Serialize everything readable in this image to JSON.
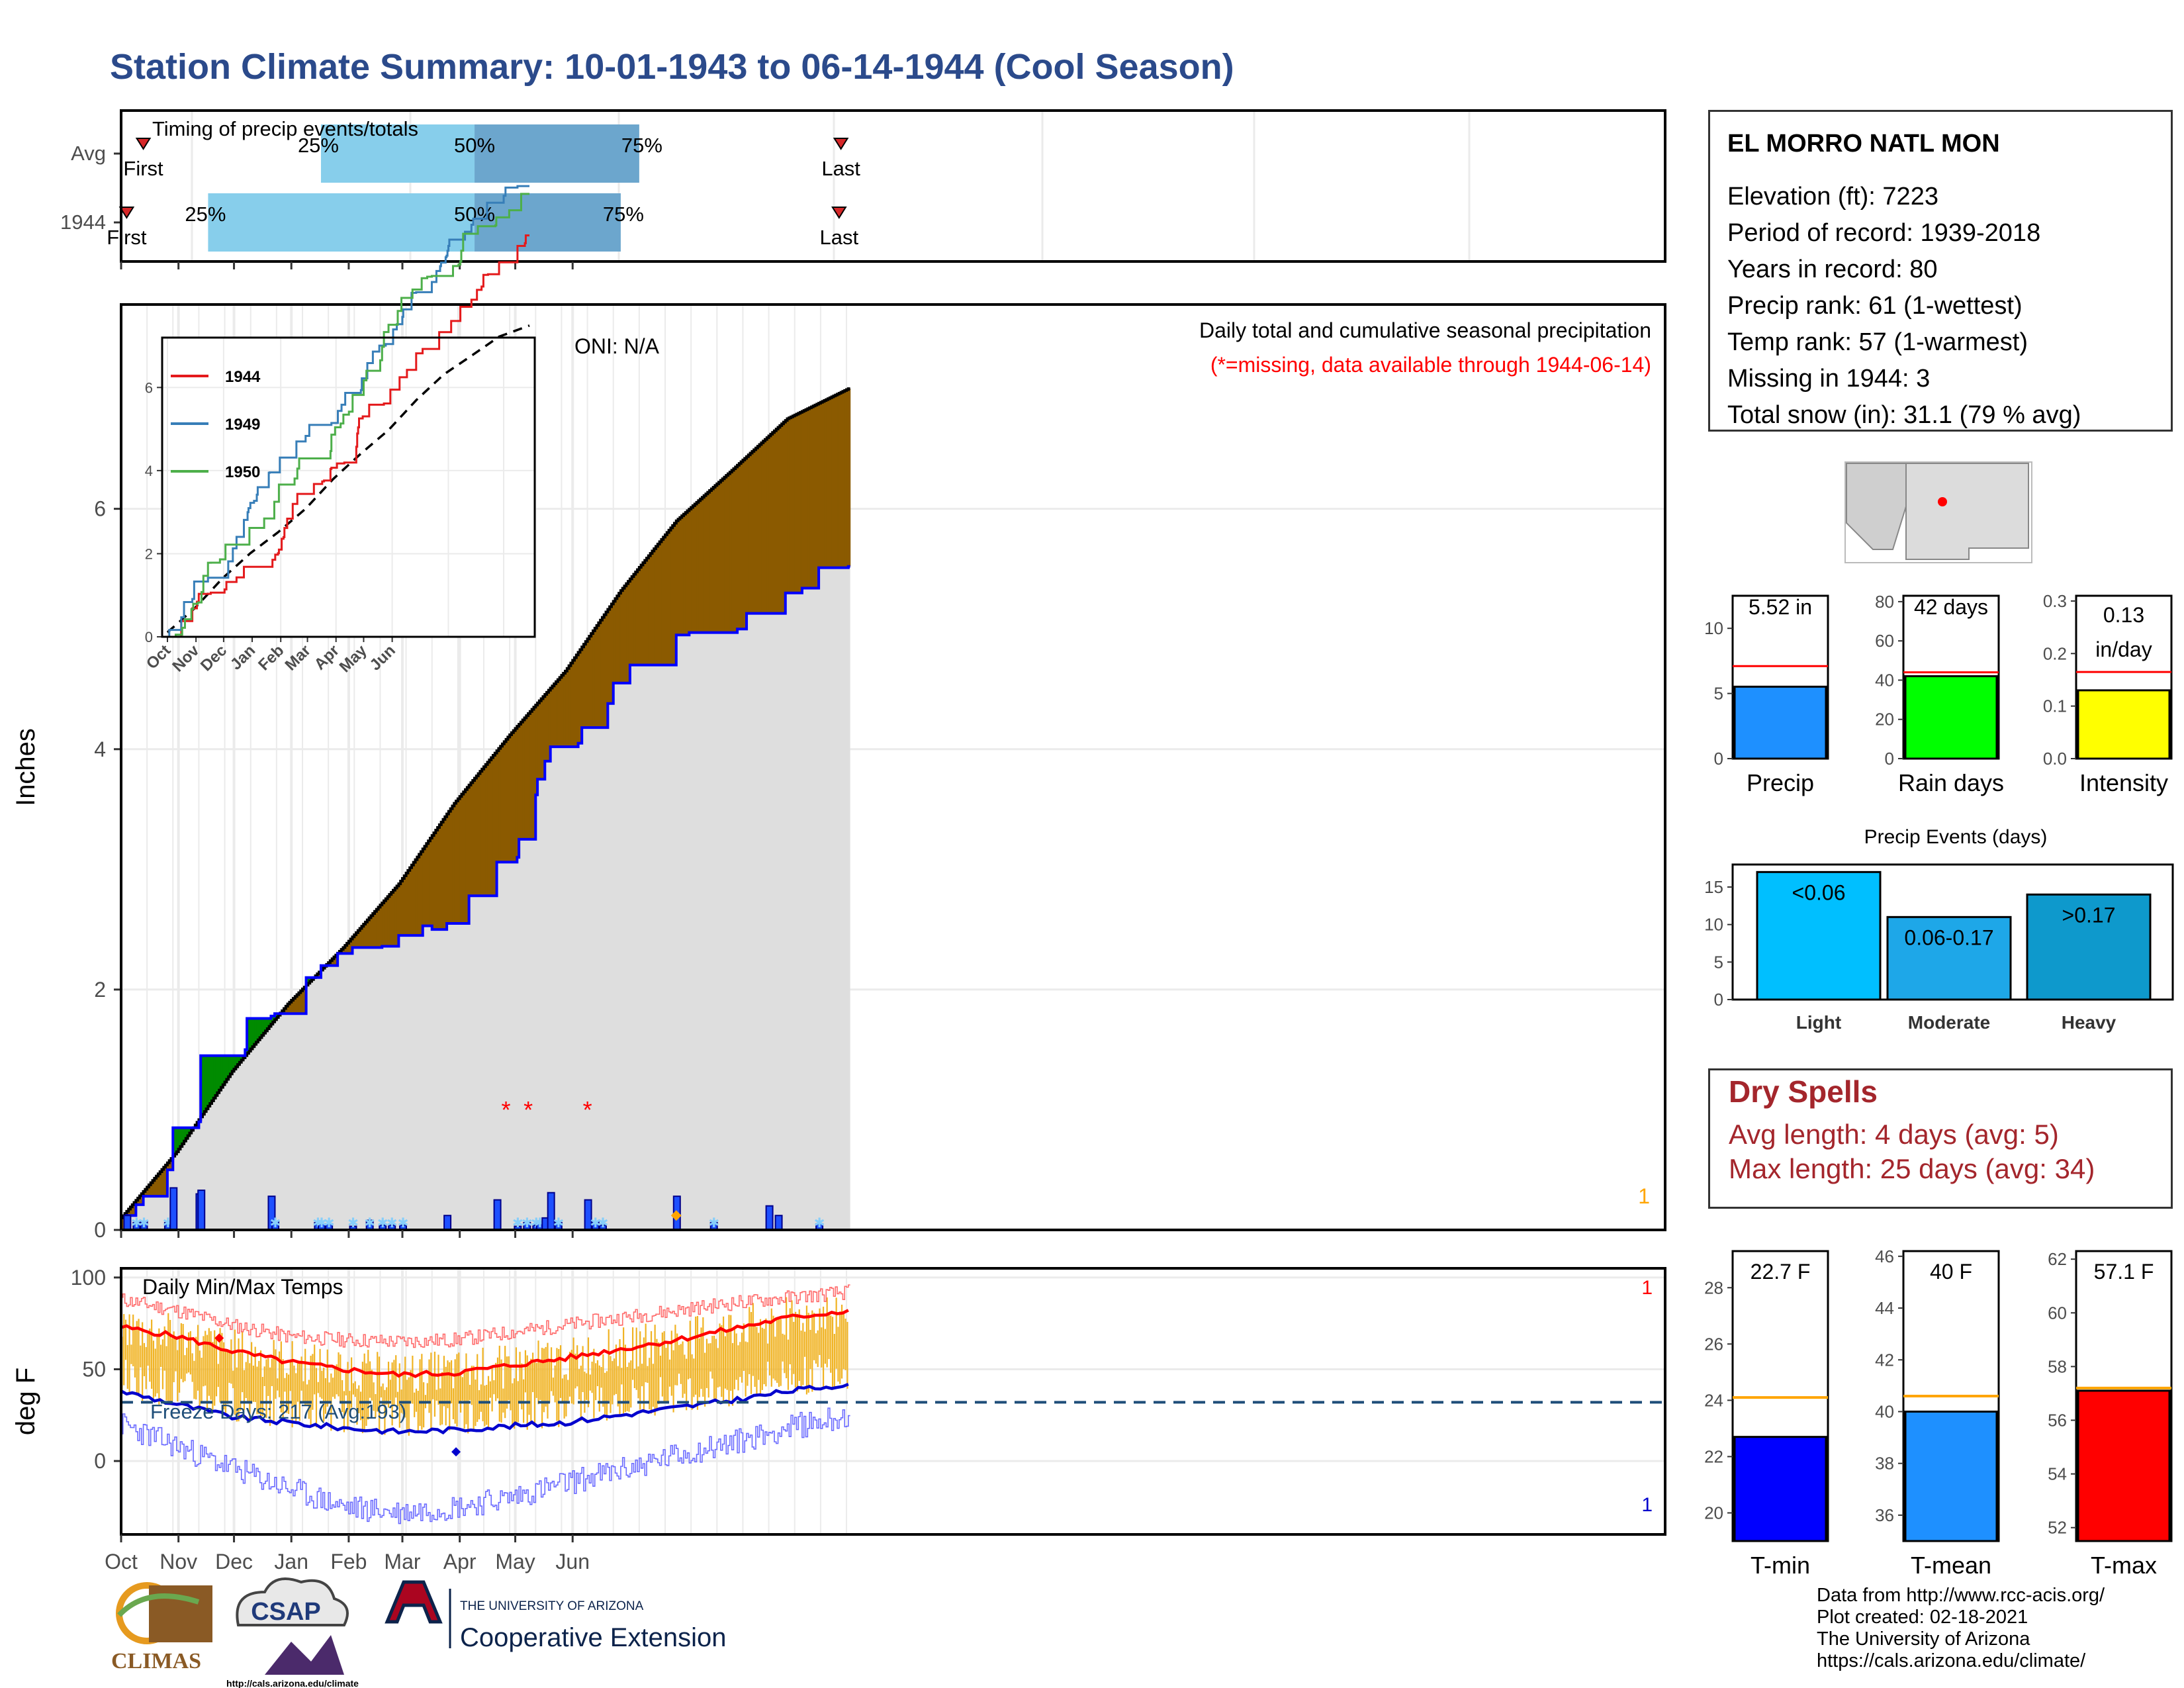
{
  "title": "Station Climate Summary: 10-01-1943 to 06-14-1944 (Cool Season)",
  "timing": {
    "heading": "Timing of precip events/totals",
    "rows": [
      {
        "label": "Avg",
        "first_day": 12,
        "p25": 108,
        "p50": 191,
        "p75": 280,
        "last_day": 389,
        "first_label": "First",
        "last_label": "Last"
      },
      {
        "label": "1944",
        "first_day": 3,
        "p25": 47,
        "p50": 191,
        "p75": 270,
        "last_day": 388,
        "first_label": "First",
        "last_label": "Last"
      }
    ],
    "pct_labels": [
      "25%",
      "50%",
      "75%"
    ]
  },
  "station": {
    "name": "EL MORRO NATL MON",
    "lines": [
      "Elevation (ft): 7223",
      "Period of record: 1939-2018",
      "Years in record: 80",
      "Precip rank: 61 (1-wettest)",
      "Temp rank: 57 (1-warmest)",
      "Missing in 1944: 3",
      "Total snow (in): 31.1 (79 % avg)"
    ]
  },
  "precip_panel": {
    "ylabel": "Inches",
    "oni": "ONI: N/A",
    "caption": "Daily total and cumulative seasonal precipitation",
    "missing_note": "(*=missing, data available through 1944-06-14)",
    "corner_count": "1",
    "yticks": [
      0,
      2,
      4,
      6
    ],
    "ylim": [
      0,
      7.7
    ]
  },
  "temp_panel": {
    "ylabel": "deg F",
    "label": "Daily Min/Max Temps",
    "freeze_note": "Freeze Days: 217 (Avg:193)",
    "yticks": [
      0,
      50,
      100
    ],
    "ylim": [
      -40,
      105
    ],
    "freeze_line": 32,
    "record_high_count": "1",
    "record_low_count": "1"
  },
  "months": [
    "Oct",
    "Nov",
    "Dec",
    "Jan",
    "Feb",
    "Mar",
    "Apr",
    "May",
    "Jun"
  ],
  "inset": {
    "series": [
      {
        "name": "1944",
        "color": "#e41a1c"
      },
      {
        "name": "1949",
        "color": "#377eb8"
      },
      {
        "name": "1950",
        "color": "#4daf4a"
      }
    ],
    "months": [
      "Oct",
      "Nov",
      "Dec",
      "Jan",
      "Feb",
      "Mar",
      "Apr",
      "May",
      "Jun"
    ],
    "yticks": [
      0,
      2,
      4,
      6
    ]
  },
  "mini_bars": [
    {
      "label": "Precip",
      "value_text": "5.52 in",
      "value": 5.52,
      "avg": 7.1,
      "ymax": 12.5,
      "ticks": [
        0,
        5,
        10
      ],
      "color": "#1e90ff"
    },
    {
      "label": "Rain days",
      "value_text": "42 days",
      "value": 42,
      "avg": 44,
      "ymax": 83,
      "ticks": [
        0,
        20,
        40,
        60,
        80
      ],
      "color": "#00ff00"
    },
    {
      "label": "Intensity",
      "value_text": "0.13 in/day",
      "value": 0.13,
      "avg": 0.165,
      "ymax": 0.31,
      "ticks": [
        0.0,
        0.1,
        0.2,
        0.3
      ],
      "color": "#ffff00"
    }
  ],
  "events": {
    "title": "Precip Events (days)",
    "bars": [
      {
        "label": "Light",
        "value_text": "<0.06",
        "value": 17
      },
      {
        "label": "Moderate",
        "value_text": "0.06-0.17",
        "value": 11
      },
      {
        "label": "Heavy",
        "value_text": ">0.17",
        "value": 14
      }
    ],
    "ticks": [
      0,
      5,
      10,
      15
    ],
    "colors": [
      "#00bfff",
      "#1ea7e8",
      "#0e99cc"
    ]
  },
  "dry_spells": {
    "title": "Dry Spells",
    "avg_line": "Avg length: 4 days (avg: 5)",
    "max_line": "Max length: 25 days (avg: 34)"
  },
  "temp_bars": [
    {
      "label": "T-min",
      "value_text": "22.7 F",
      "value": 22.7,
      "avg": 24.1,
      "ymin": 19,
      "ymax": 29.3,
      "ticks": [
        20,
        22,
        24,
        26,
        28
      ],
      "color": "#0000ff"
    },
    {
      "label": "T-mean",
      "value_text": "40 F",
      "value": 40.0,
      "avg": 40.6,
      "ymin": 35,
      "ymax": 46.2,
      "ticks": [
        36,
        38,
        40,
        42,
        44,
        46
      ],
      "color": "#1e90ff"
    },
    {
      "label": "T-max",
      "value_text": "57.1 F",
      "value": 57.1,
      "avg": 57.2,
      "ymin": 51.5,
      "ymax": 62.3,
      "ticks": [
        52,
        54,
        56,
        58,
        60,
        62
      ],
      "color": "#ff0000"
    }
  ],
  "credits": [
    "Data from http://www.rcc-acis.org/",
    "Plot created: 02-18-2021",
    "The University of Arizona",
    "https://cals.arizona.edu/climate/"
  ],
  "logos": {
    "climas": "CLIMAS",
    "csap": "CSAP",
    "csap_url": "http://cals.arizona.edu/climate",
    "ua_line1": "THE UNIVERSITY OF ARIZONA",
    "ua_line2": "Cooperative Extension"
  },
  "chart_data": [
    {
      "type": "line",
      "title": "Daily total and cumulative seasonal precipitation",
      "ylabel": "Inches",
      "x_unit": "days since Oct 1",
      "ylim": [
        0,
        7.7
      ],
      "series": [
        {
          "name": "1944 cumulative",
          "x": [
            0,
            3,
            8,
            12,
            25,
            28,
            42,
            43,
            50,
            51,
            67,
            68,
            81,
            83,
            100,
            108,
            117,
            125,
            141,
            150,
            163,
            168,
            176,
            188,
            203,
            214,
            215,
            223,
            224,
            225,
            229,
            232,
            247,
            249,
            250,
            263,
            266,
            275,
            300,
            307,
            333,
            338,
            359,
            368,
            377,
            393
          ],
          "y": [
            0,
            0.12,
            0.21,
            0.28,
            0.5,
            0.85,
            0.9,
            1.45,
            1.45,
            1.45,
            1.5,
            1.76,
            1.78,
            1.8,
            2.1,
            2.2,
            2.3,
            2.35,
            2.36,
            2.45,
            2.53,
            2.5,
            2.55,
            2.78,
            3.06,
            3.1,
            3.25,
            3.25,
            3.62,
            3.75,
            3.9,
            4.02,
            4.05,
            4.18,
            4.18,
            4.38,
            4.55,
            4.7,
            4.95,
            4.97,
            5.0,
            5.13,
            5.3,
            5.34,
            5.51,
            5.52
          ]
        },
        {
          "name": "average cumulative",
          "x": [
            0,
            30,
            60,
            90,
            120,
            150,
            180,
            210,
            240,
            270,
            300,
            330,
            360,
            393
          ],
          "y": [
            0.1,
            0.65,
            1.32,
            1.88,
            2.35,
            2.88,
            3.55,
            4.12,
            4.65,
            5.32,
            5.9,
            6.32,
            6.75,
            7.0
          ]
        }
      ],
      "missing_days": [
        208,
        220,
        252
      ],
      "daily_bars": {
        "x": [
          3,
          8,
          12,
          25,
          28,
          42,
          43,
          81,
          83,
          106,
          108,
          112,
          125,
          134,
          141,
          146,
          152,
          176,
          203,
          214,
          219,
          224,
          226,
          229,
          232,
          236,
          252,
          256,
          260,
          300,
          320,
          350,
          355,
          377
        ],
        "y": [
          0.12,
          0.06,
          0.07,
          0.06,
          0.35,
          0.3,
          0.33,
          0.28,
          0.07,
          0.06,
          0.05,
          0.05,
          0.03,
          0.08,
          0.04,
          0.04,
          0.04,
          0.12,
          0.25,
          0.03,
          0.06,
          0.04,
          0.05,
          0.1,
          0.31,
          0.06,
          0.25,
          0.07,
          0.04,
          0.28,
          0.06,
          0.2,
          0.12,
          0.05
        ]
      }
    },
    {
      "type": "bar",
      "title": "Daily Min/Max Temps",
      "ylabel": "deg F",
      "ylim": [
        -40,
        105
      ],
      "series": [
        {
          "name": "avg high",
          "x": [
            0,
            30,
            60,
            90,
            120,
            150,
            180,
            210,
            240,
            270,
            300,
            330,
            360,
            393
          ],
          "y": [
            73,
            68,
            60,
            54,
            50,
            47,
            48,
            52,
            56,
            61,
            66,
            72,
            78,
            82
          ]
        },
        {
          "name": "avg low",
          "x": [
            0,
            30,
            60,
            90,
            120,
            150,
            180,
            210,
            240,
            270,
            300,
            330,
            360,
            393
          ],
          "y": [
            38,
            31,
            24,
            21,
            18,
            16,
            17,
            19,
            21,
            25,
            29,
            33,
            38,
            42
          ]
        },
        {
          "name": "record high",
          "x": [
            0,
            30,
            60,
            90,
            120,
            150,
            180,
            210,
            240,
            270,
            300,
            330,
            360,
            393
          ],
          "y": [
            88,
            82,
            74,
            68,
            66,
            65,
            66,
            70,
            74,
            78,
            82,
            86,
            89,
            92
          ]
        },
        {
          "name": "record low",
          "x": [
            0,
            30,
            60,
            90,
            120,
            150,
            180,
            210,
            240,
            270,
            300,
            330,
            360,
            393
          ],
          "y": [
            20,
            8,
            -4,
            -15,
            -25,
            -28,
            -25,
            -20,
            -12,
            -5,
            3,
            10,
            18,
            25
          ]
        }
      ],
      "freeze_line": 32
    }
  ]
}
